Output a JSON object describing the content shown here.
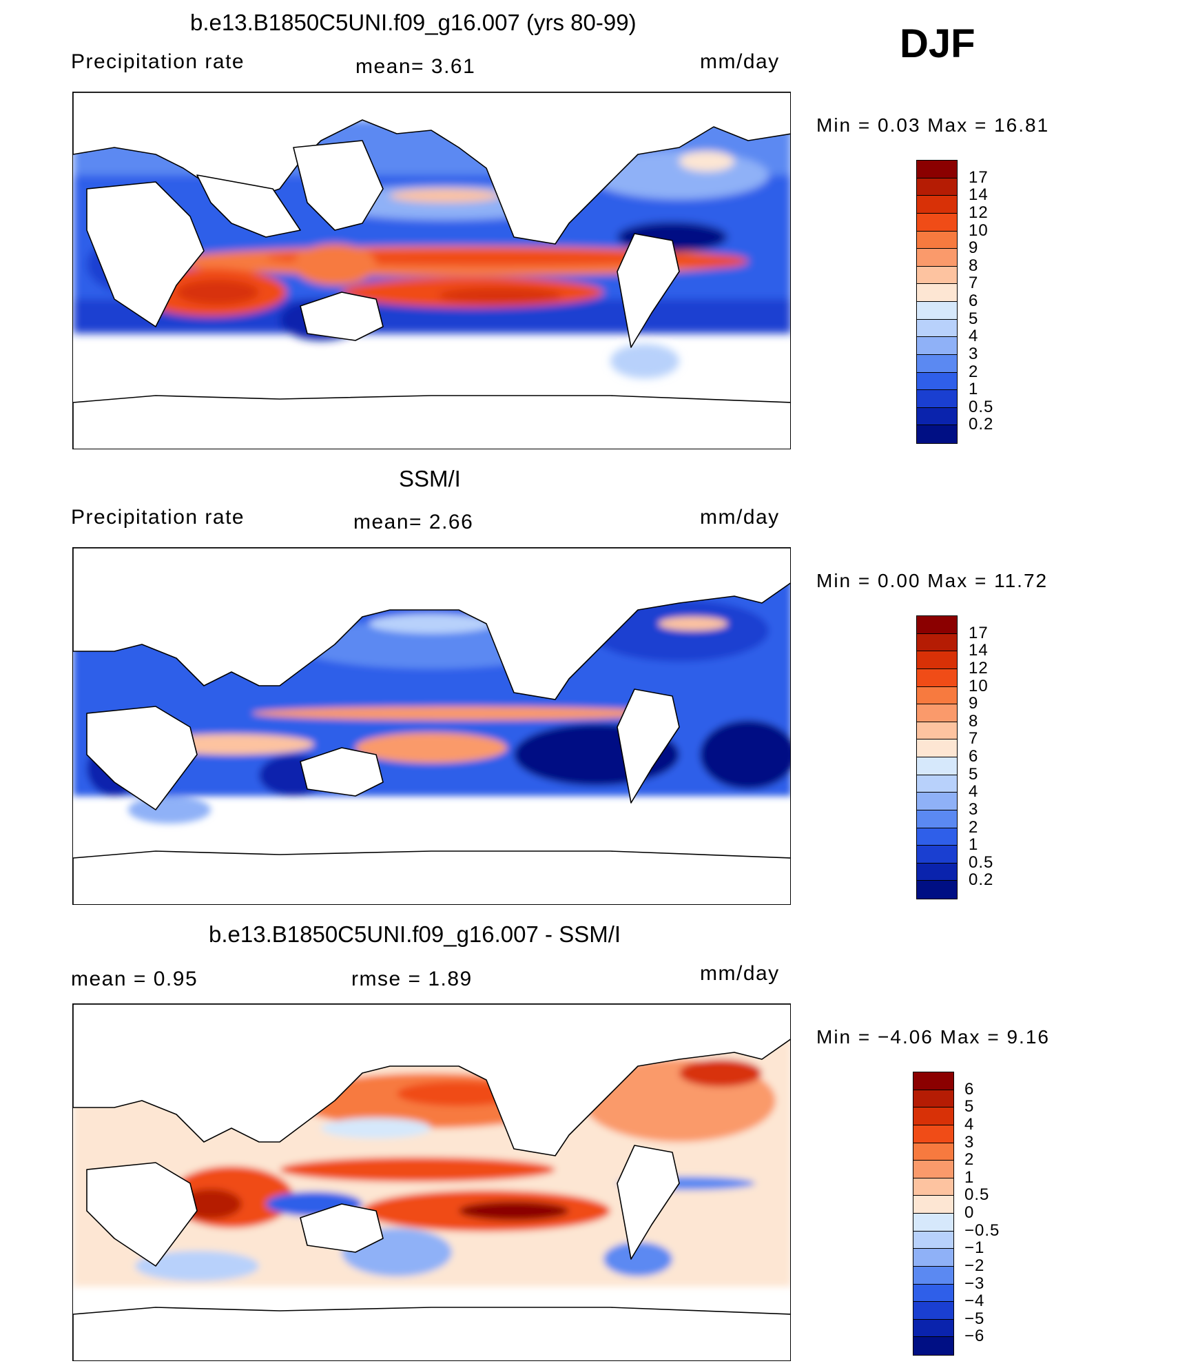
{
  "season": "DJF",
  "panels": [
    {
      "title": "b.e13.B1850C5UNI.f09_g16.007 (yrs 80-99)",
      "left_label": "Precipitation  rate",
      "center_label": "mean=    3.61",
      "units": "mm/day",
      "minmax": "Min  =     0.03  Max  =     16.81",
      "colorbar_ticks": [
        "17",
        "14",
        "12",
        "10",
        "9",
        "8",
        "7",
        "6",
        "5",
        "4",
        "3",
        "2",
        "1",
        "0.5",
        "0.2"
      ],
      "colorbar_colors": [
        "#8b0000",
        "#b51c04",
        "#d83107",
        "#f04c17",
        "#f77a3f",
        "#fa9a6b",
        "#fdc3a0",
        "#fde6d3",
        "#d6e8fb",
        "#b8d1fb",
        "#8fb1f7",
        "#5b89f2",
        "#2f5fe9",
        "#1a3fd1",
        "#0a23ad",
        "#000f84"
      ],
      "chart_data": {
        "type": "heatmap",
        "title": "b.e13.B1850C5UNI.f09_g16.007 (yrs 80-99)",
        "variable": "Precipitation rate",
        "units": "mm/day",
        "mean": 3.61,
        "min": 0.03,
        "max": 16.81,
        "contour_levels": [
          0.2,
          0.5,
          1,
          2,
          3,
          4,
          5,
          6,
          7,
          8,
          9,
          10,
          12,
          14,
          17
        ]
      }
    },
    {
      "title": "SSM/I",
      "left_label": "Precipitation  rate",
      "center_label": "mean=    2.66",
      "units": "mm/day",
      "minmax": "Min  =     0.00  Max  =     11.72",
      "colorbar_ticks": [
        "17",
        "14",
        "12",
        "10",
        "9",
        "8",
        "7",
        "6",
        "5",
        "4",
        "3",
        "2",
        "1",
        "0.5",
        "0.2"
      ],
      "colorbar_colors": [
        "#8b0000",
        "#b51c04",
        "#d83107",
        "#f04c17",
        "#f77a3f",
        "#fa9a6b",
        "#fdc3a0",
        "#fde6d3",
        "#d6e8fb",
        "#b8d1fb",
        "#8fb1f7",
        "#5b89f2",
        "#2f5fe9",
        "#1a3fd1",
        "#0a23ad",
        "#000f84"
      ],
      "chart_data": {
        "type": "heatmap",
        "title": "SSM/I",
        "variable": "Precipitation rate",
        "units": "mm/day",
        "mean": 2.66,
        "min": 0.0,
        "max": 11.72,
        "contour_levels": [
          0.2,
          0.5,
          1,
          2,
          3,
          4,
          5,
          6,
          7,
          8,
          9,
          10,
          12,
          14,
          17
        ]
      }
    },
    {
      "title": "b.e13.B1850C5UNI.f09_g16.007 - SSM/I",
      "left_label": "mean  =     0.95",
      "center_label": "rmse  =     1.89",
      "units": "mm/day",
      "minmax": "Min  =   −4.06  Max  =     9.16",
      "colorbar_ticks": [
        "6",
        "5",
        "4",
        "3",
        "2",
        "1",
        "0.5",
        "0",
        "−0.5",
        "−1",
        "−2",
        "−3",
        "−4",
        "−5",
        "−6"
      ],
      "colorbar_colors": [
        "#8b0000",
        "#b51c04",
        "#d83107",
        "#f04c17",
        "#f77a3f",
        "#fa9a6b",
        "#fdc3a0",
        "#fde6d3",
        "#d6e8fb",
        "#b8d1fb",
        "#8fb1f7",
        "#5b89f2",
        "#2f5fe9",
        "#1a3fd1",
        "#0a23ad",
        "#000f84"
      ],
      "chart_data": {
        "type": "heatmap",
        "title": "b.e13.B1850C5UNI.f09_g16.007 - SSM/I",
        "units": "mm/day",
        "mean": 0.95,
        "rmse": 1.89,
        "min": -4.06,
        "max": 9.16,
        "contour_levels": [
          -6,
          -5,
          -4,
          -3,
          -2,
          -1,
          -0.5,
          0,
          0.5,
          1,
          2,
          3,
          4,
          5,
          6
        ]
      }
    }
  ]
}
